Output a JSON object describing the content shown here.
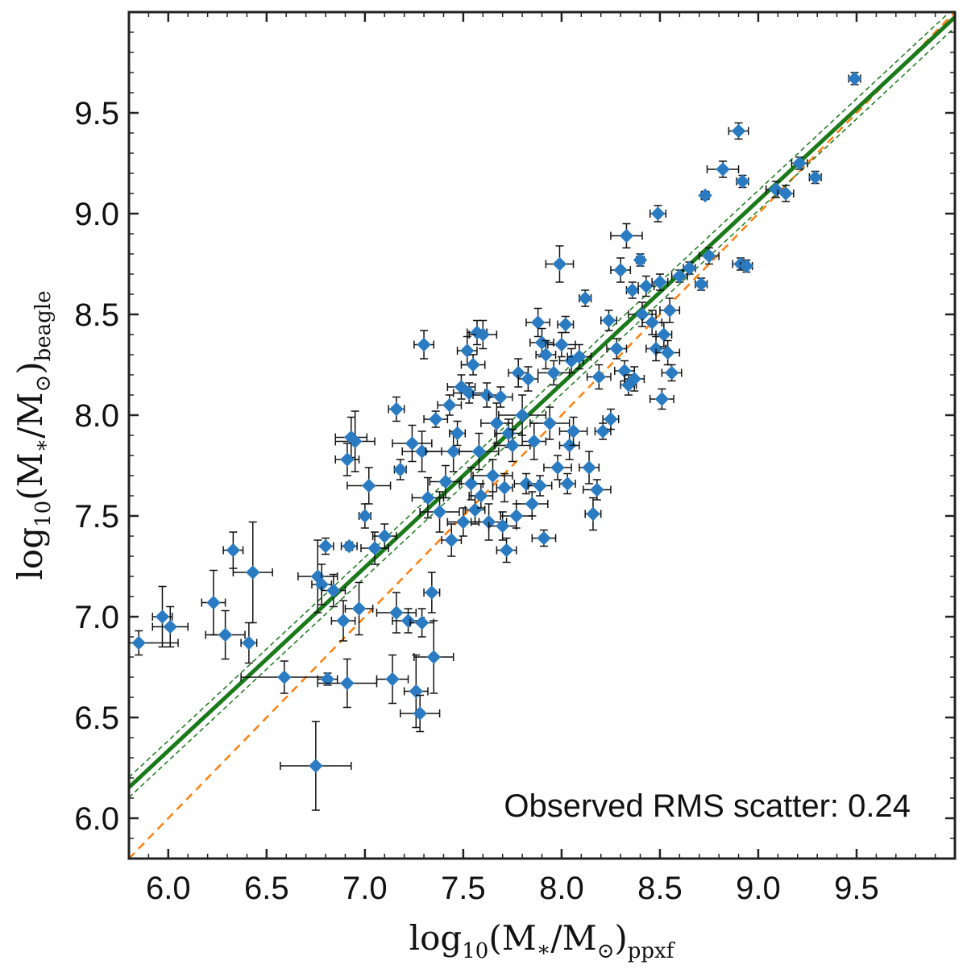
{
  "chart_data": {
    "type": "scatter",
    "title": "",
    "xlabel": {
      "main": "log",
      "sub1": "10",
      "mid": "(M",
      "star": "∗",
      "slash": "/M",
      "sun": "⊙",
      "close": ")",
      "sub2": "ppxf"
    },
    "ylabel": {
      "main": "log",
      "sub1": "10",
      "mid": "(M",
      "star": "∗",
      "slash": "/M",
      "sun": "⊙",
      "close": ")",
      "sub2": "beagle"
    },
    "xlim": [
      5.8,
      10.0
    ],
    "ylim": [
      5.8,
      10.0
    ],
    "xticks": [
      "6.0",
      "6.5",
      "7.0",
      "7.5",
      "8.0",
      "8.5",
      "9.0",
      "9.5"
    ],
    "yticks": [
      "6.0",
      "6.5",
      "7.0",
      "7.5",
      "8.0",
      "8.5",
      "9.0",
      "9.5"
    ],
    "annotation": "Observed RMS scatter: 0.24",
    "fit_line": {
      "slope": 0.91,
      "intercept": 0.875,
      "band": 0.05,
      "color": "#1a7a1a"
    },
    "identity_line": {
      "color": "#ff7f0e"
    },
    "marker_color": "#2a7bc2",
    "points": [
      [
        5.97,
        7.0,
        0.05,
        0.15
      ],
      [
        6.01,
        6.95,
        0.09,
        0.1
      ],
      [
        5.85,
        6.87,
        0.2,
        0.06
      ],
      [
        6.23,
        7.07,
        0.06,
        0.16
      ],
      [
        6.29,
        6.91,
        0.1,
        0.12
      ],
      [
        6.33,
        7.33,
        0.05,
        0.09
      ],
      [
        6.41,
        6.87,
        0.04,
        0.1
      ],
      [
        6.43,
        7.22,
        0.1,
        0.25
      ],
      [
        6.59,
        6.7,
        0.22,
        0.08
      ],
      [
        6.75,
        6.26,
        0.18,
        0.22
      ],
      [
        6.76,
        7.2,
        0.1,
        0.18
      ],
      [
        6.78,
        7.16,
        0.05,
        0.1
      ],
      [
        6.8,
        7.35,
        0.04,
        0.04
      ],
      [
        6.81,
        6.69,
        0.05,
        0.03
      ],
      [
        6.84,
        7.13,
        0.06,
        0.08
      ],
      [
        6.89,
        6.98,
        0.06,
        0.1
      ],
      [
        6.91,
        6.67,
        0.15,
        0.12
      ],
      [
        6.92,
        7.35,
        0.04,
        0.02
      ],
      [
        6.93,
        7.89,
        0.08,
        0.1
      ],
      [
        6.95,
        7.87,
        0.1,
        0.15
      ],
      [
        6.91,
        7.78,
        0.06,
        0.08
      ],
      [
        6.97,
        7.04,
        0.07,
        0.13
      ],
      [
        7.0,
        7.5,
        0.03,
        0.06
      ],
      [
        7.02,
        7.65,
        0.11,
        0.09
      ],
      [
        7.05,
        7.34,
        0.07,
        0.08
      ],
      [
        7.1,
        7.4,
        0.06,
        0.06
      ],
      [
        7.14,
        6.69,
        0.08,
        0.12
      ],
      [
        7.16,
        7.02,
        0.1,
        0.1
      ],
      [
        7.18,
        7.73,
        0.03,
        0.05
      ],
      [
        7.16,
        8.03,
        0.04,
        0.06
      ],
      [
        7.22,
        6.98,
        0.08,
        0.06
      ],
      [
        7.24,
        7.86,
        0.1,
        0.09
      ],
      [
        7.26,
        6.63,
        0.06,
        0.18
      ],
      [
        7.28,
        6.52,
        0.1,
        0.09
      ],
      [
        7.29,
        6.97,
        0.06,
        0.07
      ],
      [
        7.29,
        7.82,
        0.1,
        0.1
      ],
      [
        7.3,
        8.35,
        0.05,
        0.07
      ],
      [
        7.32,
        7.59,
        0.08,
        0.1
      ],
      [
        7.34,
        7.12,
        0.04,
        0.1
      ],
      [
        7.35,
        6.8,
        0.1,
        0.18
      ],
      [
        7.36,
        7.98,
        0.06,
        0.04
      ],
      [
        7.38,
        7.52,
        0.1,
        0.1
      ],
      [
        7.41,
        7.67,
        0.08,
        0.08
      ],
      [
        7.43,
        8.05,
        0.06,
        0.05
      ],
      [
        7.44,
        7.38,
        0.05,
        0.08
      ],
      [
        7.45,
        7.82,
        0.14,
        0.1
      ],
      [
        7.47,
        7.91,
        0.04,
        0.06
      ],
      [
        7.49,
        8.14,
        0.07,
        0.06
      ],
      [
        7.5,
        7.47,
        0.08,
        0.07
      ],
      [
        7.52,
        8.32,
        0.05,
        0.07
      ],
      [
        7.53,
        8.11,
        0.08,
        0.05
      ],
      [
        7.54,
        7.66,
        0.06,
        0.08
      ],
      [
        7.55,
        8.25,
        0.06,
        0.05
      ],
      [
        7.56,
        7.53,
        0.05,
        0.07
      ],
      [
        7.57,
        8.41,
        0.05,
        0.06
      ],
      [
        7.58,
        7.82,
        0.1,
        0.09
      ],
      [
        7.59,
        7.6,
        0.06,
        0.06
      ],
      [
        7.6,
        8.4,
        0.07,
        0.07
      ],
      [
        7.62,
        8.1,
        0.07,
        0.06
      ],
      [
        7.63,
        7.47,
        0.09,
        0.09
      ],
      [
        7.65,
        7.7,
        0.1,
        0.08
      ],
      [
        7.67,
        7.96,
        0.08,
        0.1
      ],
      [
        7.69,
        8.09,
        0.06,
        0.05
      ],
      [
        7.7,
        7.45,
        0.07,
        0.07
      ],
      [
        7.71,
        7.64,
        0.04,
        0.07
      ],
      [
        7.72,
        7.33,
        0.05,
        0.06
      ],
      [
        7.73,
        7.91,
        0.07,
        0.07
      ],
      [
        7.75,
        7.85,
        0.09,
        0.08
      ],
      [
        7.77,
        7.5,
        0.08,
        0.06
      ],
      [
        7.78,
        8.21,
        0.05,
        0.07
      ],
      [
        7.8,
        8.0,
        0.12,
        0.1
      ],
      [
        7.82,
        7.66,
        0.06,
        0.05
      ],
      [
        7.83,
        8.18,
        0.05,
        0.06
      ],
      [
        7.85,
        7.56,
        0.08,
        0.06
      ],
      [
        7.86,
        7.87,
        0.06,
        0.09
      ],
      [
        7.88,
        8.46,
        0.06,
        0.07
      ],
      [
        7.89,
        7.65,
        0.06,
        0.05
      ],
      [
        7.9,
        8.36,
        0.06,
        0.07
      ],
      [
        7.91,
        7.39,
        0.06,
        0.04
      ],
      [
        7.92,
        8.3,
        0.05,
        0.07
      ],
      [
        7.94,
        7.96,
        0.1,
        0.08
      ],
      [
        7.96,
        8.21,
        0.08,
        0.06
      ],
      [
        7.98,
        7.74,
        0.07,
        0.06
      ],
      [
        7.99,
        8.75,
        0.07,
        0.09
      ],
      [
        8.0,
        8.35,
        0.07,
        0.06
      ],
      [
        8.02,
        8.45,
        0.04,
        0.04
      ],
      [
        8.03,
        7.66,
        0.04,
        0.05
      ],
      [
        8.04,
        7.85,
        0.05,
        0.07
      ],
      [
        8.05,
        8.27,
        0.06,
        0.06
      ],
      [
        8.06,
        7.92,
        0.07,
        0.07
      ],
      [
        8.09,
        8.29,
        0.06,
        0.06
      ],
      [
        8.12,
        8.58,
        0.03,
        0.04
      ],
      [
        8.14,
        7.74,
        0.05,
        0.08
      ],
      [
        8.16,
        7.51,
        0.04,
        0.08
      ],
      [
        8.18,
        7.63,
        0.07,
        0.05
      ],
      [
        8.19,
        8.19,
        0.06,
        0.06
      ],
      [
        8.21,
        7.92,
        0.04,
        0.04
      ],
      [
        8.24,
        8.47,
        0.04,
        0.05
      ],
      [
        8.25,
        7.98,
        0.04,
        0.05
      ],
      [
        8.28,
        8.33,
        0.05,
        0.05
      ],
      [
        8.3,
        8.72,
        0.05,
        0.06
      ],
      [
        8.32,
        8.22,
        0.05,
        0.05
      ],
      [
        8.33,
        8.89,
        0.08,
        0.06
      ],
      [
        8.34,
        8.15,
        0.04,
        0.05
      ],
      [
        8.36,
        8.62,
        0.03,
        0.04
      ],
      [
        8.37,
        8.18,
        0.05,
        0.06
      ],
      [
        8.4,
        8.77,
        0.02,
        0.03
      ],
      [
        8.41,
        8.5,
        0.07,
        0.06
      ],
      [
        8.43,
        8.64,
        0.04,
        0.05
      ],
      [
        8.46,
        8.46,
        0.05,
        0.06
      ],
      [
        8.48,
        8.33,
        0.05,
        0.06
      ],
      [
        8.49,
        9.0,
        0.04,
        0.04
      ],
      [
        8.5,
        8.66,
        0.04,
        0.04
      ],
      [
        8.51,
        8.08,
        0.06,
        0.05
      ],
      [
        8.52,
        8.4,
        0.04,
        0.06
      ],
      [
        8.54,
        8.31,
        0.06,
        0.06
      ],
      [
        8.55,
        8.52,
        0.05,
        0.06
      ],
      [
        8.56,
        8.21,
        0.05,
        0.04
      ],
      [
        8.6,
        8.69,
        0.04,
        0.03
      ],
      [
        8.65,
        8.73,
        0.03,
        0.03
      ],
      [
        8.71,
        8.65,
        0.03,
        0.03
      ],
      [
        8.73,
        9.09,
        0.02,
        0.02
      ],
      [
        8.75,
        8.79,
        0.05,
        0.04
      ],
      [
        8.82,
        9.22,
        0.08,
        0.04
      ],
      [
        8.9,
        9.41,
        0.05,
        0.04
      ],
      [
        8.91,
        8.75,
        0.04,
        0.03
      ],
      [
        8.94,
        8.74,
        0.03,
        0.03
      ],
      [
        8.92,
        9.16,
        0.03,
        0.03
      ],
      [
        9.09,
        9.12,
        0.05,
        0.04
      ],
      [
        9.14,
        9.1,
        0.04,
        0.04
      ],
      [
        9.21,
        9.25,
        0.04,
        0.03
      ],
      [
        9.29,
        9.18,
        0.03,
        0.03
      ],
      [
        9.49,
        9.67,
        0.03,
        0.03
      ]
    ]
  }
}
